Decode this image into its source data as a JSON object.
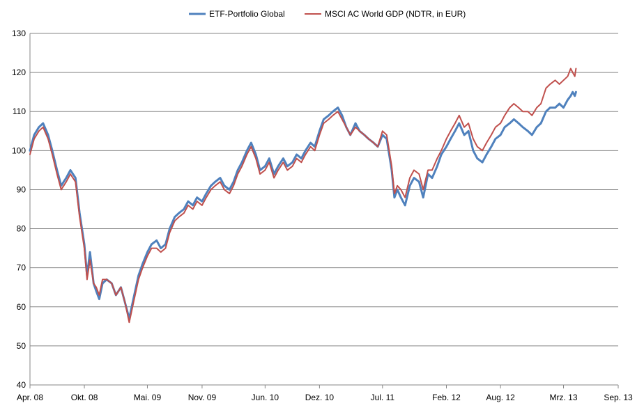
{
  "chart_data": {
    "type": "line",
    "ylim": [
      40,
      130
    ],
    "yticks": [
      40,
      50,
      60,
      70,
      80,
      90,
      100,
      110,
      120,
      130
    ],
    "xlim": [
      "2008-04-01",
      "2013-09-01"
    ],
    "xtick_labels": [
      {
        "label": "Apr. 08",
        "date": "2008-04-01"
      },
      {
        "label": "Okt. 08",
        "date": "2008-10-01"
      },
      {
        "label": "Mai. 09",
        "date": "2009-05-01"
      },
      {
        "label": "Nov. 09",
        "date": "2009-11-01"
      },
      {
        "label": "Jun. 10",
        "date": "2010-06-01"
      },
      {
        "label": "Dez. 10",
        "date": "2010-12-01"
      },
      {
        "label": "Jul. 11",
        "date": "2011-07-01"
      },
      {
        "label": "Feb. 12",
        "date": "2012-02-01"
      },
      {
        "label": "Aug. 12",
        "date": "2012-08-01"
      },
      {
        "label": "Mrz. 13",
        "date": "2013-03-01"
      },
      {
        "label": "Sep. 13",
        "date": "2013-09-01"
      }
    ],
    "grid": true,
    "legend_position": "top",
    "series": [
      {
        "name": "ETF-Portfolio Global",
        "color": "#4F81BD",
        "points": [
          [
            "2008-04-01",
            100
          ],
          [
            "2008-04-15",
            104
          ],
          [
            "2008-05-01",
            106
          ],
          [
            "2008-05-15",
            107
          ],
          [
            "2008-06-01",
            104
          ],
          [
            "2008-06-15",
            100
          ],
          [
            "2008-07-01",
            95
          ],
          [
            "2008-07-15",
            91
          ],
          [
            "2008-08-01",
            93
          ],
          [
            "2008-08-15",
            95
          ],
          [
            "2008-09-01",
            93
          ],
          [
            "2008-09-15",
            84
          ],
          [
            "2008-10-01",
            76
          ],
          [
            "2008-10-10",
            68
          ],
          [
            "2008-10-20",
            74
          ],
          [
            "2008-11-01",
            66
          ],
          [
            "2008-11-10",
            64
          ],
          [
            "2008-11-20",
            62
          ],
          [
            "2008-12-01",
            66
          ],
          [
            "2008-12-15",
            67
          ],
          [
            "2009-01-01",
            66
          ],
          [
            "2009-01-15",
            63
          ],
          [
            "2009-02-01",
            65
          ],
          [
            "2009-02-15",
            61
          ],
          [
            "2009-03-01",
            57
          ],
          [
            "2009-03-15",
            62
          ],
          [
            "2009-04-01",
            68
          ],
          [
            "2009-04-15",
            71
          ],
          [
            "2009-05-01",
            74
          ],
          [
            "2009-05-15",
            76
          ],
          [
            "2009-06-01",
            77
          ],
          [
            "2009-06-15",
            75
          ],
          [
            "2009-07-01",
            76
          ],
          [
            "2009-07-15",
            80
          ],
          [
            "2009-08-01",
            83
          ],
          [
            "2009-08-15",
            84
          ],
          [
            "2009-09-01",
            85
          ],
          [
            "2009-09-15",
            87
          ],
          [
            "2009-10-01",
            86
          ],
          [
            "2009-10-15",
            88
          ],
          [
            "2009-11-01",
            87
          ],
          [
            "2009-11-15",
            89
          ],
          [
            "2009-12-01",
            91
          ],
          [
            "2009-12-15",
            92
          ],
          [
            "2010-01-01",
            93
          ],
          [
            "2010-01-15",
            91
          ],
          [
            "2010-02-01",
            90
          ],
          [
            "2010-02-15",
            92
          ],
          [
            "2010-03-01",
            95
          ],
          [
            "2010-03-15",
            97
          ],
          [
            "2010-04-01",
            100
          ],
          [
            "2010-04-15",
            102
          ],
          [
            "2010-05-01",
            99
          ],
          [
            "2010-05-15",
            95
          ],
          [
            "2010-06-01",
            96
          ],
          [
            "2010-06-15",
            98
          ],
          [
            "2010-07-01",
            94
          ],
          [
            "2010-07-15",
            96
          ],
          [
            "2010-08-01",
            98
          ],
          [
            "2010-08-15",
            96
          ],
          [
            "2010-09-01",
            97
          ],
          [
            "2010-09-15",
            99
          ],
          [
            "2010-10-01",
            98
          ],
          [
            "2010-10-15",
            100
          ],
          [
            "2010-11-01",
            102
          ],
          [
            "2010-11-15",
            101
          ],
          [
            "2010-12-01",
            105
          ],
          [
            "2010-12-15",
            108
          ],
          [
            "2011-01-01",
            109
          ],
          [
            "2011-01-15",
            110
          ],
          [
            "2011-02-01",
            111
          ],
          [
            "2011-02-15",
            109
          ],
          [
            "2011-03-01",
            106
          ],
          [
            "2011-03-15",
            104
          ],
          [
            "2011-04-01",
            107
          ],
          [
            "2011-04-15",
            105
          ],
          [
            "2011-05-01",
            104
          ],
          [
            "2011-05-15",
            103
          ],
          [
            "2011-06-01",
            102
          ],
          [
            "2011-06-15",
            101
          ],
          [
            "2011-07-01",
            104
          ],
          [
            "2011-07-15",
            103
          ],
          [
            "2011-08-01",
            95
          ],
          [
            "2011-08-10",
            88
          ],
          [
            "2011-08-20",
            90
          ],
          [
            "2011-09-01",
            88
          ],
          [
            "2011-09-15",
            86
          ],
          [
            "2011-10-01",
            91
          ],
          [
            "2011-10-15",
            93
          ],
          [
            "2011-11-01",
            92
          ],
          [
            "2011-11-15",
            88
          ],
          [
            "2011-12-01",
            94
          ],
          [
            "2011-12-15",
            93
          ],
          [
            "2012-01-01",
            96
          ],
          [
            "2012-01-15",
            99
          ],
          [
            "2012-02-01",
            101
          ],
          [
            "2012-02-15",
            103
          ],
          [
            "2012-03-01",
            105
          ],
          [
            "2012-03-15",
            107
          ],
          [
            "2012-04-01",
            104
          ],
          [
            "2012-04-15",
            105
          ],
          [
            "2012-05-01",
            100
          ],
          [
            "2012-05-15",
            98
          ],
          [
            "2012-06-01",
            97
          ],
          [
            "2012-06-15",
            99
          ],
          [
            "2012-07-01",
            101
          ],
          [
            "2012-07-15",
            103
          ],
          [
            "2012-08-01",
            104
          ],
          [
            "2012-08-15",
            106
          ],
          [
            "2012-09-01",
            107
          ],
          [
            "2012-09-15",
            108
          ],
          [
            "2012-10-01",
            107
          ],
          [
            "2012-10-15",
            106
          ],
          [
            "2012-11-01",
            105
          ],
          [
            "2012-11-15",
            104
          ],
          [
            "2012-12-01",
            106
          ],
          [
            "2012-12-15",
            107
          ],
          [
            "2013-01-01",
            110
          ],
          [
            "2013-01-15",
            111
          ],
          [
            "2013-02-01",
            111
          ],
          [
            "2013-02-15",
            112
          ],
          [
            "2013-03-01",
            111
          ],
          [
            "2013-03-15",
            113
          ],
          [
            "2013-03-25",
            114
          ],
          [
            "2013-04-01",
            115
          ],
          [
            "2013-04-08",
            114
          ],
          [
            "2013-04-12",
            115
          ]
        ]
      },
      {
        "name": "MSCI AC World GDP (NDTR, in EUR)",
        "color": "#C0504D",
        "points": [
          [
            "2008-04-01",
            99
          ],
          [
            "2008-04-15",
            103
          ],
          [
            "2008-05-01",
            105
          ],
          [
            "2008-05-15",
            106
          ],
          [
            "2008-06-01",
            103
          ],
          [
            "2008-06-15",
            99
          ],
          [
            "2008-07-01",
            94
          ],
          [
            "2008-07-15",
            90
          ],
          [
            "2008-08-01",
            92
          ],
          [
            "2008-08-15",
            94
          ],
          [
            "2008-09-01",
            92
          ],
          [
            "2008-09-15",
            83
          ],
          [
            "2008-10-01",
            75
          ],
          [
            "2008-10-10",
            67
          ],
          [
            "2008-10-20",
            72
          ],
          [
            "2008-11-01",
            66
          ],
          [
            "2008-11-10",
            65
          ],
          [
            "2008-11-20",
            63
          ],
          [
            "2008-12-01",
            67
          ],
          [
            "2008-12-15",
            67
          ],
          [
            "2009-01-01",
            66
          ],
          [
            "2009-01-15",
            63
          ],
          [
            "2009-02-01",
            65
          ],
          [
            "2009-02-15",
            61
          ],
          [
            "2009-03-01",
            56
          ],
          [
            "2009-03-15",
            61
          ],
          [
            "2009-04-01",
            67
          ],
          [
            "2009-04-15",
            70
          ],
          [
            "2009-05-01",
            73
          ],
          [
            "2009-05-15",
            75
          ],
          [
            "2009-06-01",
            75
          ],
          [
            "2009-06-15",
            74
          ],
          [
            "2009-07-01",
            75
          ],
          [
            "2009-07-15",
            79
          ],
          [
            "2009-08-01",
            82
          ],
          [
            "2009-08-15",
            83
          ],
          [
            "2009-09-01",
            84
          ],
          [
            "2009-09-15",
            86
          ],
          [
            "2009-10-01",
            85
          ],
          [
            "2009-10-15",
            87
          ],
          [
            "2009-11-01",
            86
          ],
          [
            "2009-11-15",
            88
          ],
          [
            "2009-12-01",
            90
          ],
          [
            "2009-12-15",
            91
          ],
          [
            "2010-01-01",
            92
          ],
          [
            "2010-01-15",
            90
          ],
          [
            "2010-02-01",
            89
          ],
          [
            "2010-02-15",
            91
          ],
          [
            "2010-03-01",
            94
          ],
          [
            "2010-03-15",
            96
          ],
          [
            "2010-04-01",
            99
          ],
          [
            "2010-04-15",
            101
          ],
          [
            "2010-05-01",
            98
          ],
          [
            "2010-05-15",
            94
          ],
          [
            "2010-06-01",
            95
          ],
          [
            "2010-06-15",
            97
          ],
          [
            "2010-07-01",
            93
          ],
          [
            "2010-07-15",
            95
          ],
          [
            "2010-08-01",
            97
          ],
          [
            "2010-08-15",
            95
          ],
          [
            "2010-09-01",
            96
          ],
          [
            "2010-09-15",
            98
          ],
          [
            "2010-10-01",
            97
          ],
          [
            "2010-10-15",
            99
          ],
          [
            "2010-11-01",
            101
          ],
          [
            "2010-11-15",
            100
          ],
          [
            "2010-12-01",
            104
          ],
          [
            "2010-12-15",
            107
          ],
          [
            "2011-01-01",
            108
          ],
          [
            "2011-01-15",
            109
          ],
          [
            "2011-02-01",
            110
          ],
          [
            "2011-02-15",
            108
          ],
          [
            "2011-03-01",
            106
          ],
          [
            "2011-03-15",
            104
          ],
          [
            "2011-04-01",
            106
          ],
          [
            "2011-04-15",
            105
          ],
          [
            "2011-05-01",
            104
          ],
          [
            "2011-05-15",
            103
          ],
          [
            "2011-06-01",
            102
          ],
          [
            "2011-06-15",
            101
          ],
          [
            "2011-07-01",
            105
          ],
          [
            "2011-07-15",
            104
          ],
          [
            "2011-08-01",
            96
          ],
          [
            "2011-08-10",
            89
          ],
          [
            "2011-08-20",
            91
          ],
          [
            "2011-09-01",
            90
          ],
          [
            "2011-09-15",
            88
          ],
          [
            "2011-10-01",
            93
          ],
          [
            "2011-10-15",
            95
          ],
          [
            "2011-11-01",
            94
          ],
          [
            "2011-11-15",
            90
          ],
          [
            "2011-12-01",
            95
          ],
          [
            "2011-12-15",
            95
          ],
          [
            "2012-01-01",
            98
          ],
          [
            "2012-01-15",
            100
          ],
          [
            "2012-02-01",
            103
          ],
          [
            "2012-02-15",
            105
          ],
          [
            "2012-03-01",
            107
          ],
          [
            "2012-03-15",
            109
          ],
          [
            "2012-04-01",
            106
          ],
          [
            "2012-04-15",
            107
          ],
          [
            "2012-05-01",
            103
          ],
          [
            "2012-05-15",
            101
          ],
          [
            "2012-06-01",
            100
          ],
          [
            "2012-06-15",
            102
          ],
          [
            "2012-07-01",
            104
          ],
          [
            "2012-07-15",
            106
          ],
          [
            "2012-08-01",
            107
          ],
          [
            "2012-08-15",
            109
          ],
          [
            "2012-09-01",
            111
          ],
          [
            "2012-09-15",
            112
          ],
          [
            "2012-10-01",
            111
          ],
          [
            "2012-10-15",
            110
          ],
          [
            "2012-11-01",
            110
          ],
          [
            "2012-11-15",
            109
          ],
          [
            "2012-12-01",
            111
          ],
          [
            "2012-12-15",
            112
          ],
          [
            "2013-01-01",
            116
          ],
          [
            "2013-01-15",
            117
          ],
          [
            "2013-02-01",
            118
          ],
          [
            "2013-02-15",
            117
          ],
          [
            "2013-03-01",
            118
          ],
          [
            "2013-03-15",
            119
          ],
          [
            "2013-03-25",
            121
          ],
          [
            "2013-04-01",
            120
          ],
          [
            "2013-04-08",
            119
          ],
          [
            "2013-04-12",
            121
          ]
        ]
      }
    ]
  }
}
